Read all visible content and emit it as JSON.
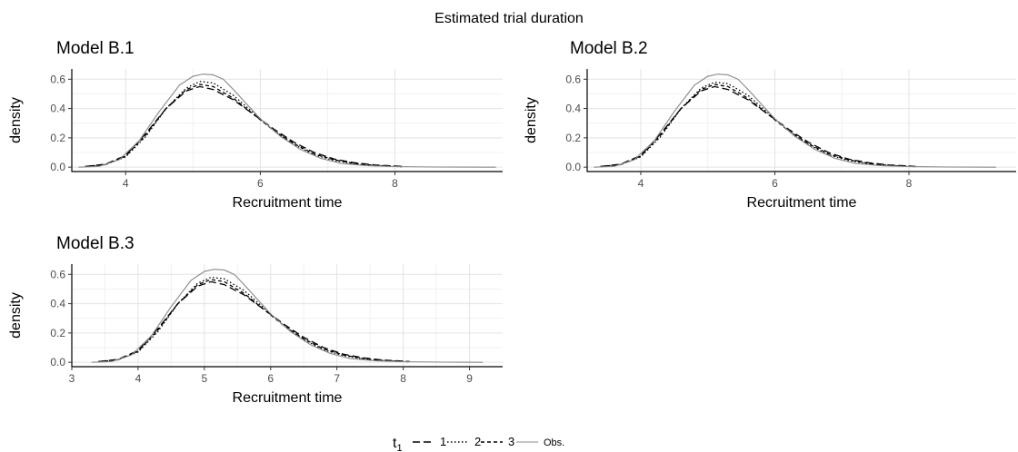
{
  "figure": {
    "title": "Estimated trial duration"
  },
  "legend": {
    "title_main": "t",
    "title_sub": "1",
    "entries": [
      {
        "label": "1",
        "style": "longdash"
      },
      {
        "label": "2",
        "style": "dotted"
      },
      {
        "label": "3",
        "style": "dashed"
      },
      {
        "label": "Obs.",
        "style": "solid"
      }
    ]
  },
  "chart_data": [
    {
      "type": "line",
      "title": "Model B.1",
      "xlabel": "Recruitment time",
      "ylabel": "density",
      "xlim": [
        3.2,
        9.6
      ],
      "ylim": [
        -0.03,
        0.67
      ],
      "x_ticks": [
        4,
        6,
        8
      ],
      "y_ticks": [
        0.0,
        0.2,
        0.4,
        0.6
      ],
      "y_tick_labels": [
        "0.0",
        "0.2",
        "0.4",
        "0.6"
      ],
      "grid": true,
      "series": [
        {
          "name": "1",
          "style": "longdash",
          "color": "#000000",
          "x": [
            3.4,
            3.7,
            4.0,
            4.3,
            4.6,
            4.9,
            5.1,
            5.3,
            5.6,
            5.9,
            6.2,
            6.5,
            6.8,
            7.1,
            7.4,
            7.7,
            8.0,
            8.1
          ],
          "y": [
            0.005,
            0.02,
            0.08,
            0.23,
            0.4,
            0.52,
            0.55,
            0.53,
            0.46,
            0.36,
            0.26,
            0.17,
            0.1,
            0.055,
            0.03,
            0.015,
            0.008,
            0.005
          ]
        },
        {
          "name": "2",
          "style": "dotted",
          "color": "#000000",
          "x": [
            3.4,
            3.7,
            4.0,
            4.3,
            4.6,
            4.9,
            5.1,
            5.3,
            5.6,
            5.9,
            6.2,
            6.5,
            6.8,
            7.1,
            7.4,
            7.7,
            8.0,
            8.1
          ],
          "y": [
            0.004,
            0.017,
            0.07,
            0.21,
            0.4,
            0.54,
            0.585,
            0.575,
            0.49,
            0.37,
            0.25,
            0.155,
            0.085,
            0.045,
            0.022,
            0.01,
            0.005,
            0.003
          ]
        },
        {
          "name": "3",
          "style": "dashed",
          "color": "#000000",
          "x": [
            3.4,
            3.7,
            4.0,
            4.3,
            4.6,
            4.9,
            5.1,
            5.3,
            5.6,
            5.9,
            6.2,
            6.5,
            6.8,
            7.1,
            7.4,
            7.7,
            8.0,
            8.1
          ],
          "y": [
            0.004,
            0.018,
            0.075,
            0.22,
            0.4,
            0.53,
            0.565,
            0.55,
            0.47,
            0.36,
            0.25,
            0.16,
            0.09,
            0.05,
            0.025,
            0.012,
            0.006,
            0.004
          ]
        },
        {
          "name": "Obs.",
          "style": "solid",
          "color": "#888888",
          "x": [
            3.3,
            3.6,
            3.9,
            4.2,
            4.5,
            4.8,
            5.0,
            5.15,
            5.3,
            5.45,
            5.6,
            5.8,
            6.0,
            6.3,
            6.6,
            6.9,
            7.2,
            7.6,
            8.0,
            8.6,
            9.5
          ],
          "y": [
            0.0,
            0.005,
            0.05,
            0.18,
            0.38,
            0.56,
            0.62,
            0.635,
            0.63,
            0.6,
            0.53,
            0.43,
            0.33,
            0.21,
            0.12,
            0.06,
            0.025,
            0.01,
            0.004,
            0.001,
            0.0
          ]
        }
      ]
    },
    {
      "type": "line",
      "title": "Model B.2",
      "xlabel": "Recruitment time",
      "ylabel": "density",
      "xlim": [
        3.2,
        9.6
      ],
      "ylim": [
        -0.03,
        0.67
      ],
      "x_ticks": [
        4,
        6,
        8
      ],
      "y_ticks": [
        0.0,
        0.2,
        0.4,
        0.6
      ],
      "y_tick_labels": [
        "0.0",
        "0.2",
        "0.4",
        "0.6"
      ],
      "grid": true,
      "series": [
        {
          "name": "1",
          "style": "longdash",
          "color": "#000000",
          "x": [
            3.4,
            3.7,
            4.0,
            4.3,
            4.6,
            4.9,
            5.1,
            5.3,
            5.6,
            5.9,
            6.2,
            6.5,
            6.8,
            7.1,
            7.4,
            7.7,
            8.0,
            8.1
          ],
          "y": [
            0.005,
            0.02,
            0.08,
            0.23,
            0.4,
            0.52,
            0.55,
            0.53,
            0.46,
            0.36,
            0.26,
            0.17,
            0.1,
            0.055,
            0.03,
            0.015,
            0.008,
            0.005
          ]
        },
        {
          "name": "2",
          "style": "dotted",
          "color": "#000000",
          "x": [
            3.4,
            3.7,
            4.0,
            4.3,
            4.6,
            4.9,
            5.1,
            5.3,
            5.6,
            5.9,
            6.2,
            6.5,
            6.8,
            7.1,
            7.4,
            7.7,
            8.0,
            8.1
          ],
          "y": [
            0.004,
            0.017,
            0.07,
            0.21,
            0.4,
            0.54,
            0.58,
            0.57,
            0.49,
            0.37,
            0.25,
            0.155,
            0.085,
            0.045,
            0.022,
            0.01,
            0.005,
            0.003
          ]
        },
        {
          "name": "3",
          "style": "dashed",
          "color": "#000000",
          "x": [
            3.4,
            3.7,
            4.0,
            4.3,
            4.6,
            4.9,
            5.1,
            5.3,
            5.6,
            5.9,
            6.2,
            6.5,
            6.8,
            7.1,
            7.4,
            7.7,
            8.0,
            8.1
          ],
          "y": [
            0.004,
            0.018,
            0.075,
            0.22,
            0.4,
            0.53,
            0.565,
            0.55,
            0.47,
            0.36,
            0.25,
            0.16,
            0.09,
            0.05,
            0.025,
            0.012,
            0.006,
            0.004
          ]
        },
        {
          "name": "Obs.",
          "style": "solid",
          "color": "#888888",
          "x": [
            3.3,
            3.6,
            3.9,
            4.2,
            4.5,
            4.8,
            5.0,
            5.15,
            5.3,
            5.45,
            5.6,
            5.8,
            6.0,
            6.3,
            6.6,
            6.9,
            7.2,
            7.6,
            8.0,
            8.6,
            9.3
          ],
          "y": [
            0.0,
            0.005,
            0.05,
            0.18,
            0.38,
            0.56,
            0.62,
            0.635,
            0.63,
            0.6,
            0.53,
            0.43,
            0.33,
            0.21,
            0.12,
            0.06,
            0.025,
            0.01,
            0.004,
            0.001,
            0.0
          ]
        }
      ]
    },
    {
      "type": "line",
      "title": "Model B.3",
      "xlabel": "Recruitment time",
      "ylabel": "density",
      "xlim": [
        3.0,
        9.5
      ],
      "ylim": [
        -0.03,
        0.67
      ],
      "x_ticks": [
        3,
        4,
        5,
        6,
        7,
        8,
        9
      ],
      "y_ticks": [
        0.0,
        0.2,
        0.4,
        0.6
      ],
      "y_tick_labels": [
        "0.0",
        "0.2",
        "0.4",
        "0.6"
      ],
      "grid": true,
      "series": [
        {
          "name": "1",
          "style": "longdash",
          "color": "#000000",
          "x": [
            3.4,
            3.7,
            4.0,
            4.3,
            4.6,
            4.9,
            5.1,
            5.3,
            5.6,
            5.9,
            6.2,
            6.5,
            6.8,
            7.1,
            7.4,
            7.7,
            8.0,
            8.1
          ],
          "y": [
            0.005,
            0.02,
            0.08,
            0.23,
            0.4,
            0.52,
            0.55,
            0.53,
            0.46,
            0.36,
            0.26,
            0.17,
            0.1,
            0.055,
            0.03,
            0.015,
            0.008,
            0.005
          ]
        },
        {
          "name": "2",
          "style": "dotted",
          "color": "#000000",
          "x": [
            3.4,
            3.7,
            4.0,
            4.3,
            4.6,
            4.9,
            5.1,
            5.3,
            5.6,
            5.9,
            6.2,
            6.5,
            6.8,
            7.1,
            7.4,
            7.7,
            8.0,
            8.1
          ],
          "y": [
            0.004,
            0.017,
            0.07,
            0.21,
            0.4,
            0.54,
            0.58,
            0.57,
            0.49,
            0.37,
            0.25,
            0.155,
            0.085,
            0.045,
            0.022,
            0.01,
            0.005,
            0.003
          ]
        },
        {
          "name": "3",
          "style": "dashed",
          "color": "#000000",
          "x": [
            3.4,
            3.7,
            4.0,
            4.3,
            4.6,
            4.9,
            5.1,
            5.3,
            5.6,
            5.9,
            6.2,
            6.5,
            6.8,
            7.1,
            7.4,
            7.7,
            8.0,
            8.1
          ],
          "y": [
            0.004,
            0.018,
            0.075,
            0.22,
            0.4,
            0.53,
            0.565,
            0.55,
            0.47,
            0.36,
            0.25,
            0.16,
            0.09,
            0.05,
            0.025,
            0.012,
            0.006,
            0.004
          ]
        },
        {
          "name": "Obs.",
          "style": "solid",
          "color": "#888888",
          "x": [
            3.3,
            3.6,
            3.9,
            4.2,
            4.5,
            4.8,
            5.0,
            5.15,
            5.3,
            5.45,
            5.6,
            5.8,
            6.0,
            6.3,
            6.6,
            6.9,
            7.2,
            7.6,
            8.0,
            8.6,
            9.2
          ],
          "y": [
            0.0,
            0.005,
            0.05,
            0.18,
            0.38,
            0.56,
            0.62,
            0.635,
            0.63,
            0.6,
            0.53,
            0.43,
            0.33,
            0.21,
            0.12,
            0.06,
            0.025,
            0.01,
            0.004,
            0.001,
            0.0
          ]
        }
      ]
    }
  ]
}
